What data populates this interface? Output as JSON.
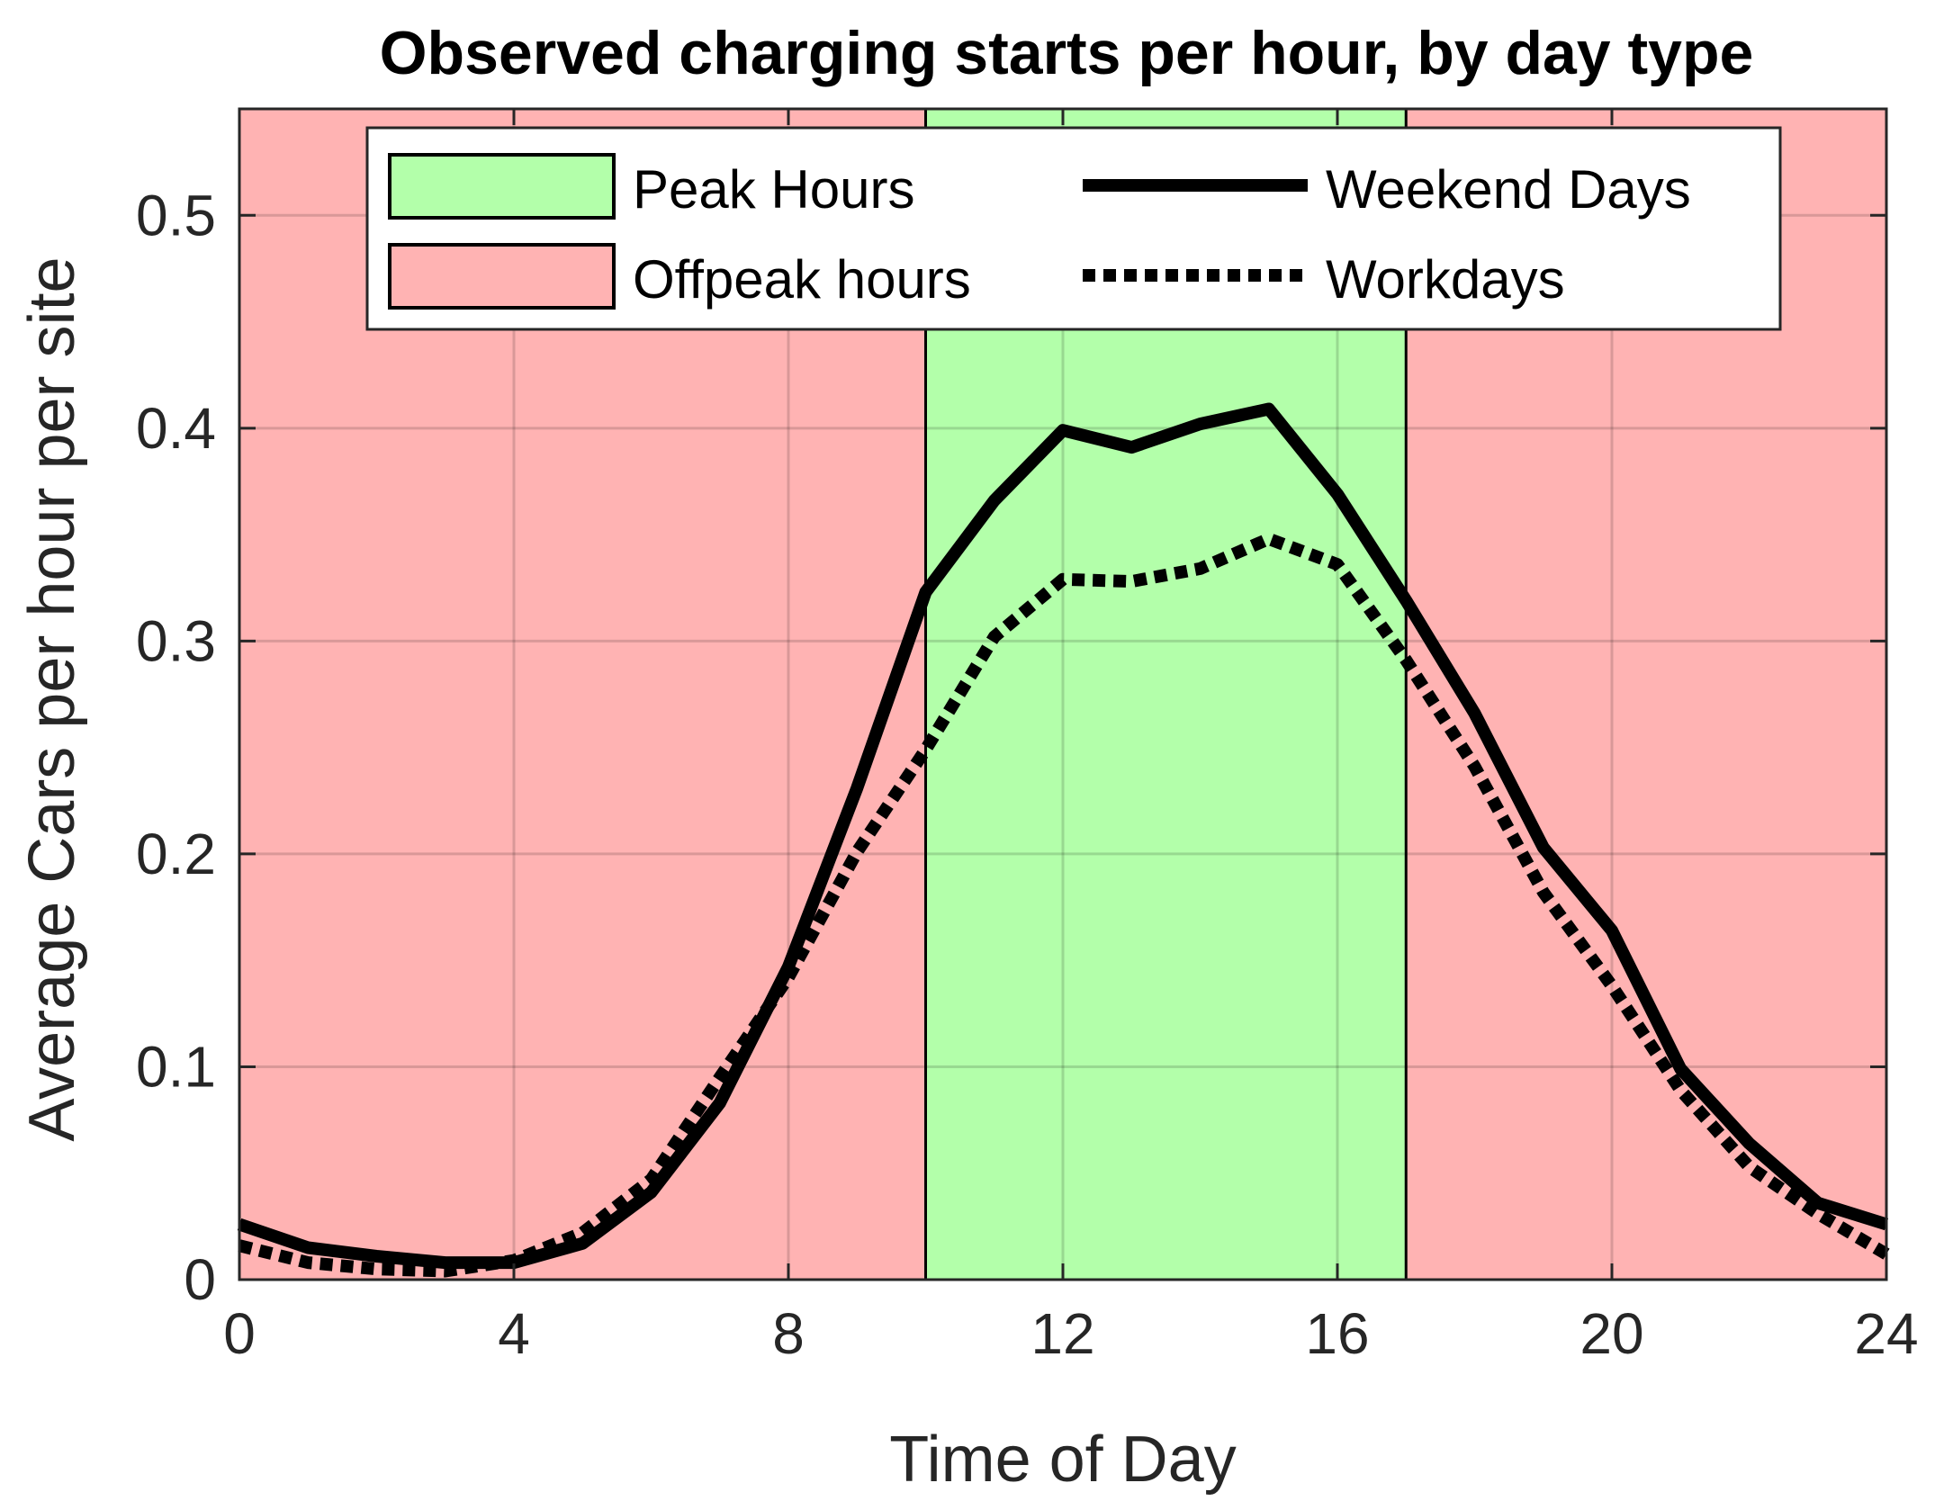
{
  "chart_data": {
    "type": "line",
    "title": "Observed charging starts per hour, by day type",
    "xlabel": "Time of Day",
    "ylabel": "Average Cars per hour per site",
    "xlim": [
      0,
      24
    ],
    "ylim": [
      0,
      0.55
    ],
    "xticks": [
      0,
      4,
      8,
      12,
      16,
      20,
      24
    ],
    "yticks": [
      0,
      0.1,
      0.2,
      0.3,
      0.4,
      0.5
    ],
    "xtick_labels": [
      "0",
      "4",
      "8",
      "12",
      "16",
      "20",
      "24"
    ],
    "ytick_labels": [
      "0",
      "0.1",
      "0.2",
      "0.3",
      "0.4",
      "0.5"
    ],
    "grid": true,
    "legend_position": "top-center",
    "regions": [
      {
        "name": "Offpeak hours",
        "x": [
          0,
          10
        ],
        "color": "#ffb3b3"
      },
      {
        "name": "Peak Hours",
        "x": [
          10,
          17
        ],
        "color": "#b3ffaa"
      },
      {
        "name": "Offpeak hours",
        "x": [
          17,
          24
        ],
        "color": "#ffb3b3"
      }
    ],
    "x": [
      0,
      1,
      2,
      3,
      4,
      5,
      6,
      7,
      8,
      9,
      10,
      11,
      12,
      13,
      14,
      15,
      16,
      17,
      18,
      19,
      20,
      21,
      22,
      23,
      24
    ],
    "series": [
      {
        "name": "Weekend Days",
        "style": "solid",
        "color": "#000000",
        "values": [
          0.026,
          0.015,
          0.011,
          0.008,
          0.008,
          0.017,
          0.041,
          0.083,
          0.147,
          0.231,
          0.323,
          0.366,
          0.399,
          0.391,
          0.402,
          0.409,
          0.369,
          0.319,
          0.266,
          0.203,
          0.164,
          0.099,
          0.064,
          0.036,
          0.026
        ]
      },
      {
        "name": "Workdays",
        "style": "dotted",
        "color": "#000000",
        "values": [
          0.016,
          0.008,
          0.005,
          0.004,
          0.009,
          0.022,
          0.047,
          0.095,
          0.142,
          0.201,
          0.249,
          0.302,
          0.329,
          0.328,
          0.334,
          0.348,
          0.336,
          0.291,
          0.241,
          0.182,
          0.138,
          0.089,
          0.053,
          0.031,
          0.012
        ]
      }
    ],
    "legend": {
      "peak": "Peak Hours",
      "offpeak": "Offpeak hours",
      "weekend": "Weekend Days",
      "workdays": "Workdays"
    }
  }
}
